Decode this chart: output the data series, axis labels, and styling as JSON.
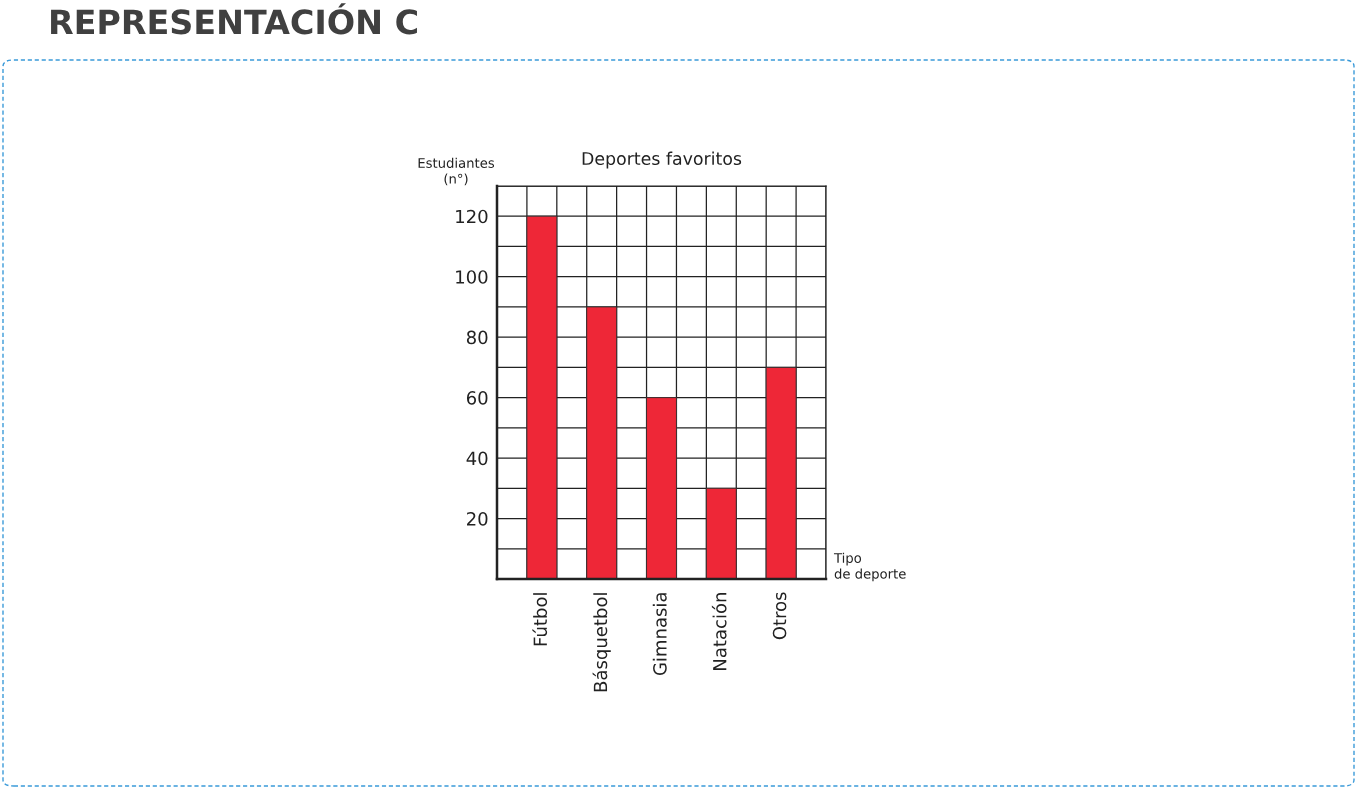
{
  "chart_data": {
    "type": "bar",
    "title": "REPRESENTACIÓN C",
    "subtitle": "Deportes favoritos",
    "xlabel": "Tipo\nde deporte",
    "ylabel": "Estudiantes\n(n°)",
    "categories": [
      "Fútbol",
      "Básquetbol",
      "Gimnasia",
      "Natación",
      "Otros"
    ],
    "values": [
      120,
      90,
      60,
      30,
      70
    ],
    "color": "#ee2737",
    "ylim": [
      0,
      130
    ],
    "yticks": [
      {
        "value": 10,
        "label": null
      },
      20,
      {
        "value": 30,
        "label": null
      },
      40,
      {
        "value": 50,
        "label": null
      },
      60,
      {
        "value": 70,
        "label": null
      },
      80,
      {
        "value": 90,
        "label": null
      },
      100,
      {
        "value": 110,
        "label": null
      },
      120,
      {
        "value": 130,
        "label": null
      }
    ],
    "grid": true
  }
}
